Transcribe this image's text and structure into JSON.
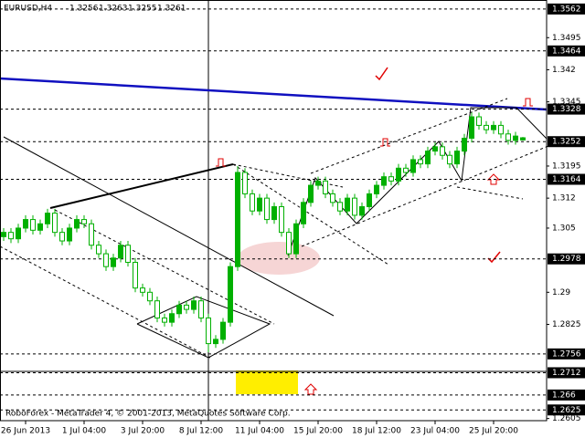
{
  "chart_data": {
    "type": "candlestick",
    "title": "EURUSD,H4",
    "footer": "RoboForex - MetaTrader 4, © 2001-2013, MetaQuotes Software Corp.",
    "categories": [
      null,
      null,
      null,
      "26 Jun 2013",
      null,
      null,
      null,
      null,
      null,
      null,
      null,
      "1 Jul 04:00",
      null,
      null,
      null,
      null,
      null,
      null,
      null,
      "3 Jul 20:00",
      null,
      null,
      null,
      null,
      null,
      null,
      null,
      "8 Jul 12:00",
      null,
      null,
      null,
      null,
      null,
      null,
      null,
      "11 Jul 04:00",
      null,
      null,
      null,
      null,
      null,
      null,
      null,
      "15 Jul 20:00",
      null,
      null,
      null,
      null,
      null,
      null,
      null,
      "18 Jul 12:00",
      null,
      null,
      null,
      null,
      null,
      null,
      null,
      "23 Jul 04:00",
      null,
      null,
      null,
      null,
      null,
      null,
      null,
      "25 Jul 20:00",
      null,
      null,
      null,
      null
    ],
    "open": [
      1.303,
      1.304,
      1.3025,
      1.305,
      1.307,
      1.3045,
      1.306,
      1.3085,
      1.304,
      1.302,
      1.305,
      1.307,
      1.306,
      1.301,
      1.299,
      1.296,
      1.298,
      1.301,
      1.297,
      1.291,
      1.29,
      1.288,
      1.284,
      1.283,
      1.285,
      1.287,
      1.286,
      1.288,
      1.284,
      1.278,
      1.279,
      1.283,
      1.296,
      1.318,
      1.313,
      1.309,
      1.312,
      1.307,
      1.31,
      1.304,
      1.299,
      1.306,
      1.311,
      1.315,
      1.316,
      1.313,
      1.311,
      1.309,
      1.312,
      1.308,
      1.31,
      1.313,
      1.315,
      1.317,
      1.316,
      1.319,
      1.318,
      1.321,
      1.32,
      1.323,
      1.324,
      1.322,
      1.32,
      1.323,
      1.326,
      1.331,
      1.329,
      1.328,
      1.329,
      1.327,
      1.3255,
      1.3256
    ],
    "high": [
      1.305,
      1.305,
      1.306,
      1.308,
      1.308,
      1.307,
      1.3095,
      1.3095,
      1.305,
      1.306,
      1.308,
      1.308,
      1.307,
      1.302,
      1.3,
      1.299,
      1.302,
      1.302,
      1.298,
      1.292,
      1.291,
      1.289,
      1.285,
      1.286,
      1.288,
      1.288,
      1.289,
      1.289,
      1.285,
      1.28,
      1.284,
      1.297,
      1.3195,
      1.319,
      1.314,
      1.313,
      1.313,
      1.311,
      1.311,
      1.305,
      1.307,
      1.312,
      1.316,
      1.317,
      1.317,
      1.314,
      1.312,
      1.313,
      1.313,
      1.311,
      1.314,
      1.316,
      1.318,
      1.318,
      1.32,
      1.32,
      1.322,
      1.322,
      1.324,
      1.325,
      1.325,
      1.323,
      1.324,
      1.327,
      1.332,
      1.332,
      1.33,
      1.33,
      1.33,
      1.328,
      1.3275,
      1.3263
    ],
    "low": [
      1.302,
      1.3015,
      1.3015,
      1.304,
      1.3035,
      1.3035,
      1.305,
      1.303,
      1.301,
      1.301,
      1.304,
      1.305,
      1.3,
      1.298,
      1.295,
      1.295,
      1.297,
      1.296,
      1.29,
      1.289,
      1.287,
      1.283,
      1.282,
      1.282,
      1.284,
      1.285,
      1.285,
      1.283,
      1.276,
      1.277,
      1.278,
      1.282,
      1.295,
      1.312,
      1.308,
      1.308,
      1.306,
      1.306,
      1.303,
      1.298,
      1.298,
      1.305,
      1.31,
      1.314,
      1.312,
      1.31,
      1.308,
      1.308,
      1.307,
      1.307,
      1.309,
      1.312,
      1.314,
      1.315,
      1.315,
      1.317,
      1.317,
      1.319,
      1.319,
      1.322,
      1.321,
      1.319,
      1.319,
      1.322,
      1.325,
      1.328,
      1.327,
      1.327,
      1.326,
      1.3245,
      1.3245,
      1.3255
    ],
    "close": [
      1.304,
      1.3025,
      1.305,
      1.307,
      1.3045,
      1.306,
      1.3085,
      1.304,
      1.302,
      1.305,
      1.307,
      1.306,
      1.301,
      1.299,
      1.296,
      1.298,
      1.301,
      1.297,
      1.291,
      1.29,
      1.288,
      1.284,
      1.283,
      1.285,
      1.287,
      1.286,
      1.288,
      1.284,
      1.278,
      1.279,
      1.283,
      1.296,
      1.318,
      1.313,
      1.309,
      1.312,
      1.307,
      1.31,
      1.304,
      1.299,
      1.306,
      1.311,
      1.315,
      1.316,
      1.313,
      1.311,
      1.309,
      1.312,
      1.308,
      1.31,
      1.313,
      1.315,
      1.317,
      1.316,
      1.319,
      1.318,
      1.321,
      1.32,
      1.323,
      1.324,
      1.322,
      1.32,
      1.323,
      1.326,
      1.331,
      1.329,
      1.328,
      1.329,
      1.327,
      1.3255,
      1.3265,
      1.3261
    ],
    "color": "#00b000",
    "ylim": [
      1.26,
      1.3583
    ],
    "yticks": [
      1.3495,
      1.342,
      1.3345,
      1.3195,
      1.312,
      1.305,
      1.29,
      1.2825,
      1.2605
    ],
    "levels": [
      1.3562,
      1.3464,
      1.3328,
      1.3252,
      1.3164,
      1.2978,
      1.2756,
      1.2712,
      1.266,
      1.2625
    ]
  }
}
